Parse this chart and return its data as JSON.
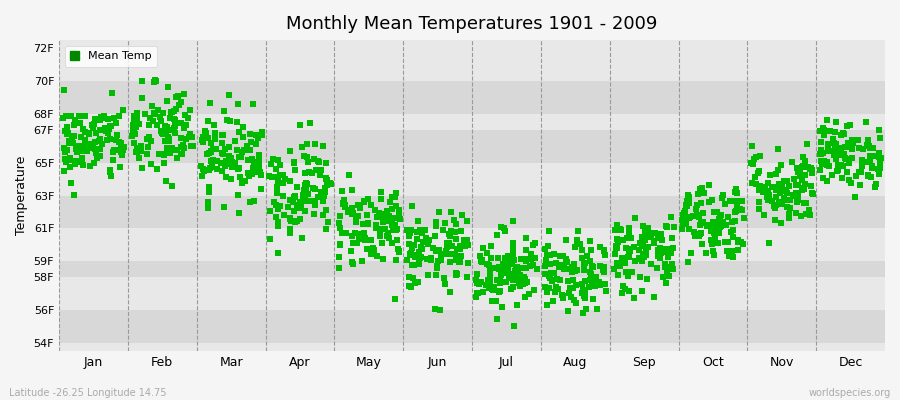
{
  "title": "Monthly Mean Temperatures 1901 - 2009",
  "ylabel": "Temperature",
  "xlabel_labels": [
    "Jan",
    "Feb",
    "Mar",
    "Apr",
    "May",
    "Jun",
    "Jul",
    "Aug",
    "Sep",
    "Oct",
    "Nov",
    "Dec"
  ],
  "ytick_labels": [
    "54F",
    "56F",
    "58F",
    "59F",
    "61F",
    "63F",
    "65F",
    "67F",
    "68F",
    "70F",
    "72F"
  ],
  "ytick_values": [
    54,
    56,
    58,
    59,
    61,
    63,
    65,
    67,
    68,
    70,
    72
  ],
  "ylim": [
    53.5,
    72.5
  ],
  "dot_color": "#00bb00",
  "bg_color": "#f5f5f5",
  "plot_bg_color": "#e8e8e8",
  "stripe_color_dark": "#d8d8d8",
  "stripe_color_light": "#e8e8e8",
  "dashed_line_color": "#999999",
  "legend_label": "Mean Temp",
  "legend_dot_color": "#008800",
  "footer_left": "Latitude -26.25 Longitude 14.75",
  "footer_right": "worldspecies.org",
  "marker": "s",
  "marker_size": 4,
  "num_years": 109,
  "seed": 42,
  "monthly_means": [
    66.2,
    66.8,
    65.5,
    63.5,
    61.2,
    59.5,
    58.5,
    58.0,
    59.5,
    61.5,
    63.5,
    65.5
  ],
  "monthly_stds": [
    1.2,
    1.5,
    1.3,
    1.5,
    1.3,
    1.2,
    1.2,
    1.1,
    1.2,
    1.2,
    1.2,
    1.0
  ]
}
